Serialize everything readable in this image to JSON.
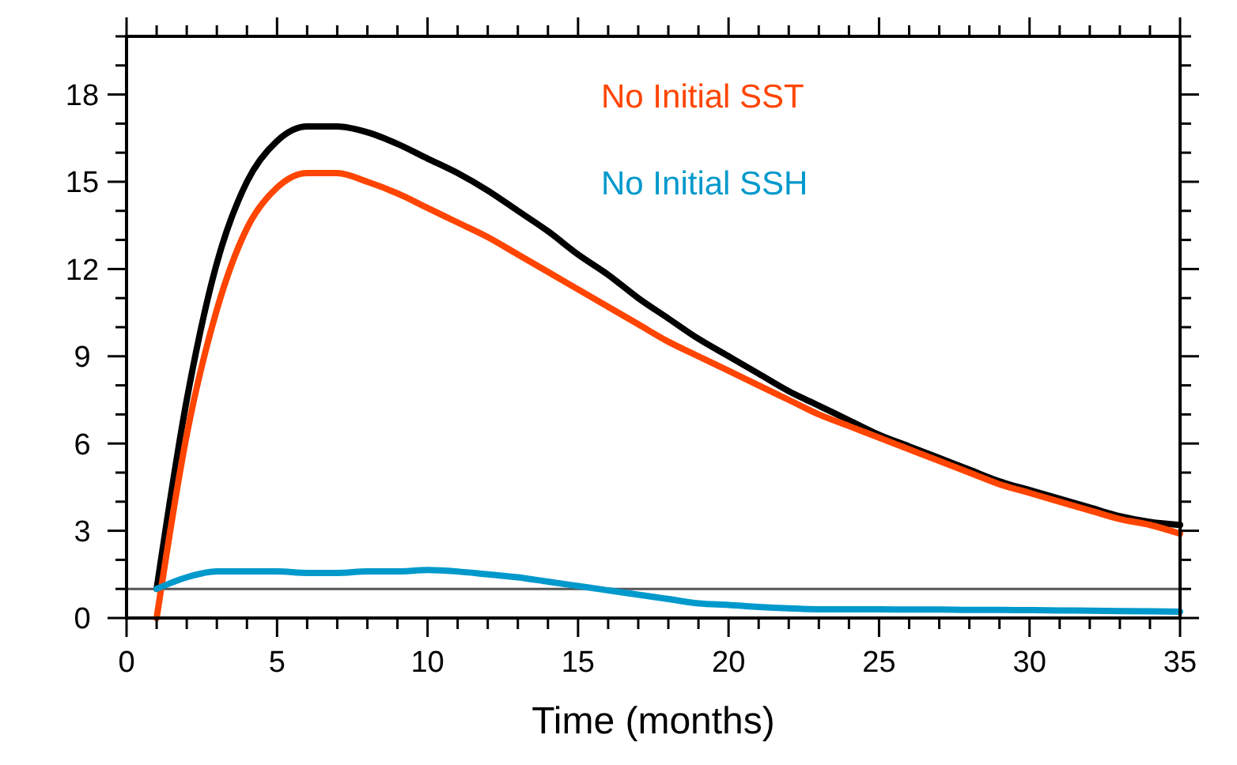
{
  "chart_data": {
    "type": "line",
    "xlabel": "Time (months)",
    "x": [
      1,
      2,
      3,
      4,
      5,
      6,
      7,
      8,
      9,
      10,
      11,
      12,
      13,
      14,
      15,
      16,
      17,
      18,
      19,
      20,
      21,
      22,
      23,
      24,
      25,
      26,
      27,
      28,
      29,
      30,
      31,
      32,
      33,
      34,
      35
    ],
    "series": [
      {
        "color": "#000000",
        "values": [
          1,
          7.5,
          12.2,
          15,
          16.4,
          16.9,
          16.9,
          16.7,
          16.3,
          15.8,
          15.3,
          14.7,
          14.0,
          13.3,
          12.5,
          11.8,
          11.0,
          10.3,
          9.6,
          9.0,
          8.4,
          7.8,
          7.3,
          6.8,
          6.3,
          5.9,
          5.5,
          5.1,
          4.7,
          4.4,
          4.1,
          3.8,
          3.5,
          3.3,
          3.2
        ]
      },
      {
        "name": "No Initial SST",
        "color": "#ff4500",
        "values": [
          0,
          6.3,
          10.6,
          13.4,
          14.8,
          15.3,
          15.3,
          15.0,
          14.6,
          14.1,
          13.6,
          13.1,
          12.5,
          11.9,
          11.3,
          10.7,
          10.1,
          9.5,
          9.0,
          8.5,
          8.0,
          7.5,
          7.0,
          6.6,
          6.2,
          5.8,
          5.4,
          5.0,
          4.6,
          4.3,
          4.0,
          3.7,
          3.4,
          3.2,
          2.9
        ]
      },
      {
        "name": "No Initial SSH",
        "color": "#0099cc",
        "values": [
          1.0,
          1.4,
          1.6,
          1.6,
          1.6,
          1.55,
          1.55,
          1.6,
          1.6,
          1.65,
          1.6,
          1.5,
          1.4,
          1.25,
          1.1,
          0.95,
          0.8,
          0.65,
          0.5,
          0.45,
          0.38,
          0.33,
          0.3,
          0.3,
          0.3,
          0.29,
          0.29,
          0.28,
          0.28,
          0.27,
          0.26,
          0.25,
          0.24,
          0.23,
          0.22
        ]
      }
    ],
    "xlim": [
      0,
      35
    ],
    "xticks": [
      0,
      {
        "value": 1,
        "label": null
      },
      {
        "value": 2,
        "label": null
      },
      {
        "value": 3,
        "label": null
      },
      {
        "value": 4,
        "label": null
      },
      5,
      {
        "value": 6,
        "label": null
      },
      {
        "value": 7,
        "label": null
      },
      {
        "value": 8,
        "label": null
      },
      {
        "value": 9,
        "label": null
      },
      10,
      {
        "value": 11,
        "label": null
      },
      {
        "value": 12,
        "label": null
      },
      {
        "value": 13,
        "label": null
      },
      {
        "value": 14,
        "label": null
      },
      15,
      {
        "value": 16,
        "label": null
      },
      {
        "value": 17,
        "label": null
      },
      {
        "value": 18,
        "label": null
      },
      {
        "value": 19,
        "label": null
      },
      20,
      {
        "value": 21,
        "label": null
      },
      {
        "value": 22,
        "label": null
      },
      {
        "value": 23,
        "label": null
      },
      {
        "value": 24,
        "label": null
      },
      25,
      {
        "value": 26,
        "label": null
      },
      {
        "value": 27,
        "label": null
      },
      {
        "value": 28,
        "label": null
      },
      {
        "value": 29,
        "label": null
      },
      30,
      {
        "value": 31,
        "label": null
      },
      {
        "value": 32,
        "label": null
      },
      {
        "value": 33,
        "label": null
      },
      {
        "value": 34,
        "label": null
      },
      35
    ],
    "ylim": [
      0,
      20
    ],
    "yticks": [
      0,
      {
        "value": 1,
        "label": null
      },
      {
        "value": 2,
        "label": null
      },
      3,
      {
        "value": 4,
        "label": null
      },
      {
        "value": 5,
        "label": null
      },
      6,
      {
        "value": 7,
        "label": null
      },
      {
        "value": 8,
        "label": null
      },
      9,
      {
        "value": 10,
        "label": null
      },
      {
        "value": 11,
        "label": null
      },
      12,
      {
        "value": 13,
        "label": null
      },
      {
        "value": 14,
        "label": null
      },
      15,
      {
        "value": 16,
        "label": null
      },
      {
        "value": 17,
        "label": null
      },
      18,
      {
        "value": 19,
        "label": null
      },
      {
        "value": 20,
        "label": null
      }
    ],
    "ref_lines": [
      {
        "axis": "y",
        "value": 1,
        "color": "#555555"
      }
    ],
    "grid": false,
    "marker": "none",
    "line_style": "solid"
  }
}
